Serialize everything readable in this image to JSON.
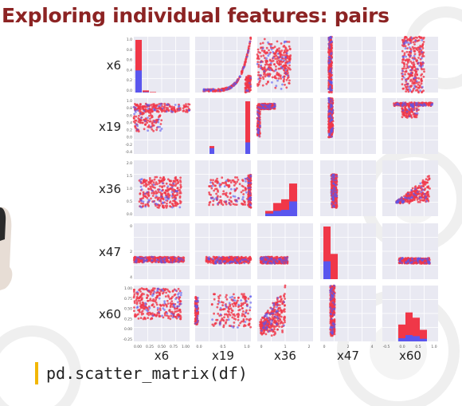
{
  "slide": {
    "title": "Exploring individual features: pairs",
    "code": "pd.scatter_matrix(df)"
  },
  "colors": {
    "title": "#8c2323",
    "panel_bg": "#e9e9f2",
    "grid": "#ffffff",
    "red": "#f03748",
    "blue": "#5a56ee",
    "accent_bar": "#f2b705"
  },
  "chart_data": {
    "type": "scatter",
    "variables": [
      "x6",
      "x19",
      "x36",
      "x47",
      "x60"
    ],
    "row_labels": [
      "x6",
      "x19",
      "x36",
      "x47",
      "x60"
    ],
    "col_labels": [
      "x6",
      "x19",
      "x36",
      "x47",
      "x60"
    ],
    "series": [
      {
        "color": "#f03748"
      },
      {
        "color": "#5a56ee"
      }
    ],
    "row_ticks": {
      "x6": [
        "1.0",
        "0.8",
        "0.6",
        "0.4",
        "0.2",
        "0.0"
      ],
      "x19": [
        "1.0",
        "0.8",
        "0.6",
        "0.4",
        "0.2",
        "0.0",
        "-0.2",
        "-0.4"
      ],
      "x36": [
        "2.0",
        "1.5",
        "1.0",
        "0.5",
        "0.0"
      ],
      "x47": [
        "0",
        "2",
        "4"
      ],
      "x60": [
        "1.00",
        "0.75",
        "0.50",
        "0.25",
        "0.00",
        "-0.25"
      ]
    },
    "col_ticks": {
      "x6": [
        "0.00",
        "0.25",
        "0.50",
        "0.75",
        "1.00"
      ],
      "x19": [
        "0.0",
        "0.5",
        "1.0"
      ],
      "x36": [
        "0",
        "1",
        "2"
      ],
      "x47": [
        "0",
        "2",
        "4"
      ],
      "x60": [
        "-0.5",
        "0.0",
        "0.5",
        "1.0"
      ]
    },
    "diagonal_hist": {
      "x6": [
        {
          "bin": "0.0-0.1",
          "red": 1.0,
          "blue": 0.42
        },
        {
          "bin": "0.1-0.2",
          "red": 0.04,
          "blue": 0.01
        },
        {
          "bin": "0.2-1.0",
          "red": 0.01,
          "blue": 0.0
        }
      ],
      "x19": [
        {
          "bin": "-0.4",
          "red": 0.15,
          "blue": 0.11
        },
        {
          "bin": "1.0",
          "red": 1.0,
          "blue": 0.22
        }
      ],
      "x36": [
        {
          "bin": "0.0",
          "red": 0.1,
          "blue": 0.05
        },
        {
          "bin": "0.5",
          "red": 0.25,
          "blue": 0.1
        },
        {
          "bin": "1.0",
          "red": 0.32,
          "blue": 0.12
        },
        {
          "bin": "1.5",
          "red": 0.62,
          "blue": 0.28
        }
      ],
      "x47": [
        {
          "bin": "0",
          "red": 1.0,
          "blue": 0.34
        },
        {
          "bin": "1",
          "red": 0.48,
          "blue": 0.0
        }
      ],
      "x60": [
        {
          "bin": "-0.1",
          "red": 0.32,
          "blue": 0.06
        },
        {
          "bin": "0.3",
          "red": 0.55,
          "blue": 0.12
        },
        {
          "bin": "0.7",
          "red": 0.45,
          "blue": 0.1
        },
        {
          "bin": "1.0",
          "red": 0.22,
          "blue": 0.05
        }
      ]
    }
  }
}
